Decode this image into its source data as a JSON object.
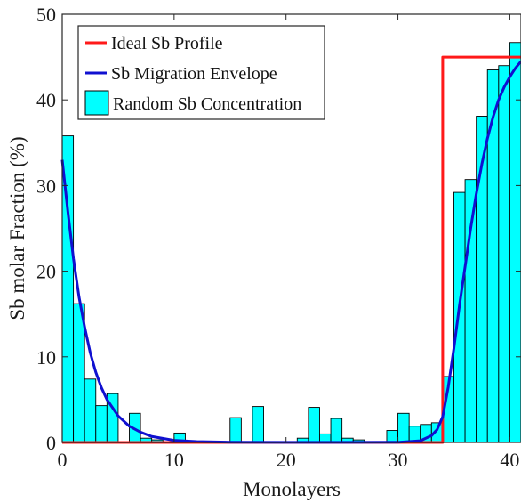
{
  "chart_data": {
    "type": "bar",
    "xlabel": "Monolayers",
    "ylabel": "Sb molar Fraction (%)",
    "xlim": [
      0,
      41
    ],
    "ylim": [
      0,
      50
    ],
    "xticks": [
      0,
      10,
      20,
      30,
      40
    ],
    "yticks": [
      0,
      10,
      20,
      30,
      40,
      50
    ],
    "grid": false,
    "legend_position": "top-left",
    "series": [
      {
        "name": "Random Sb Concentration",
        "kind": "bar",
        "color": "#00ffff",
        "edge_color": "#000000",
        "x": [
          0.5,
          1.5,
          2.5,
          3.5,
          4.5,
          5.5,
          6.5,
          7.5,
          8.5,
          9.5,
          10.5,
          11.5,
          12.5,
          13.5,
          14.5,
          15.5,
          16.5,
          17.5,
          18.5,
          19.5,
          20.5,
          21.5,
          22.5,
          23.5,
          24.5,
          25.5,
          26.5,
          27.5,
          28.5,
          29.5,
          30.5,
          31.5,
          32.5,
          33.5,
          34.5,
          35.5,
          36.5,
          37.5,
          38.5,
          39.5,
          40.5
        ],
        "values": [
          35.8,
          16.2,
          7.4,
          4.3,
          5.7,
          0.1,
          3.4,
          0.5,
          0.3,
          0.1,
          1.1,
          0.2,
          0.1,
          0.1,
          0.1,
          2.9,
          0.1,
          4.2,
          0.1,
          0.1,
          0.1,
          0.5,
          4.1,
          1.0,
          2.8,
          0.5,
          0.3,
          0.1,
          0.1,
          1.4,
          3.4,
          1.9,
          2.1,
          2.3,
          7.7,
          29.2,
          30.7,
          38.1,
          43.5,
          44.0,
          46.7
        ]
      },
      {
        "name": "Ideal Sb Profile",
        "kind": "line",
        "color": "#ff1a1a",
        "x": [
          0,
          34,
          34,
          41
        ],
        "y": [
          0,
          0,
          45,
          45
        ]
      },
      {
        "name": "Sb Migration Envelope",
        "kind": "line",
        "color": "#1010d0",
        "x": [
          0,
          0.5,
          1,
          1.5,
          2,
          2.5,
          3,
          3.5,
          4,
          5,
          6,
          7,
          8,
          10,
          12,
          15,
          20,
          25,
          30,
          32,
          33,
          33.5,
          34,
          34.5,
          35,
          35.5,
          36,
          36.5,
          37,
          37.5,
          38,
          38.5,
          39,
          39.5,
          40,
          40.5,
          41
        ],
        "y": [
          33,
          27,
          21.5,
          17,
          13.5,
          10.5,
          8.2,
          6.4,
          5.0,
          3.1,
          1.9,
          1.2,
          0.7,
          0.25,
          0.1,
          0.03,
          0.01,
          0.01,
          0.02,
          0.2,
          0.8,
          1.5,
          3,
          6.5,
          11,
          16,
          20.5,
          25,
          29,
          32.5,
          35.5,
          38,
          40,
          41.5,
          42.7,
          43.7,
          44.5
        ]
      }
    ]
  }
}
